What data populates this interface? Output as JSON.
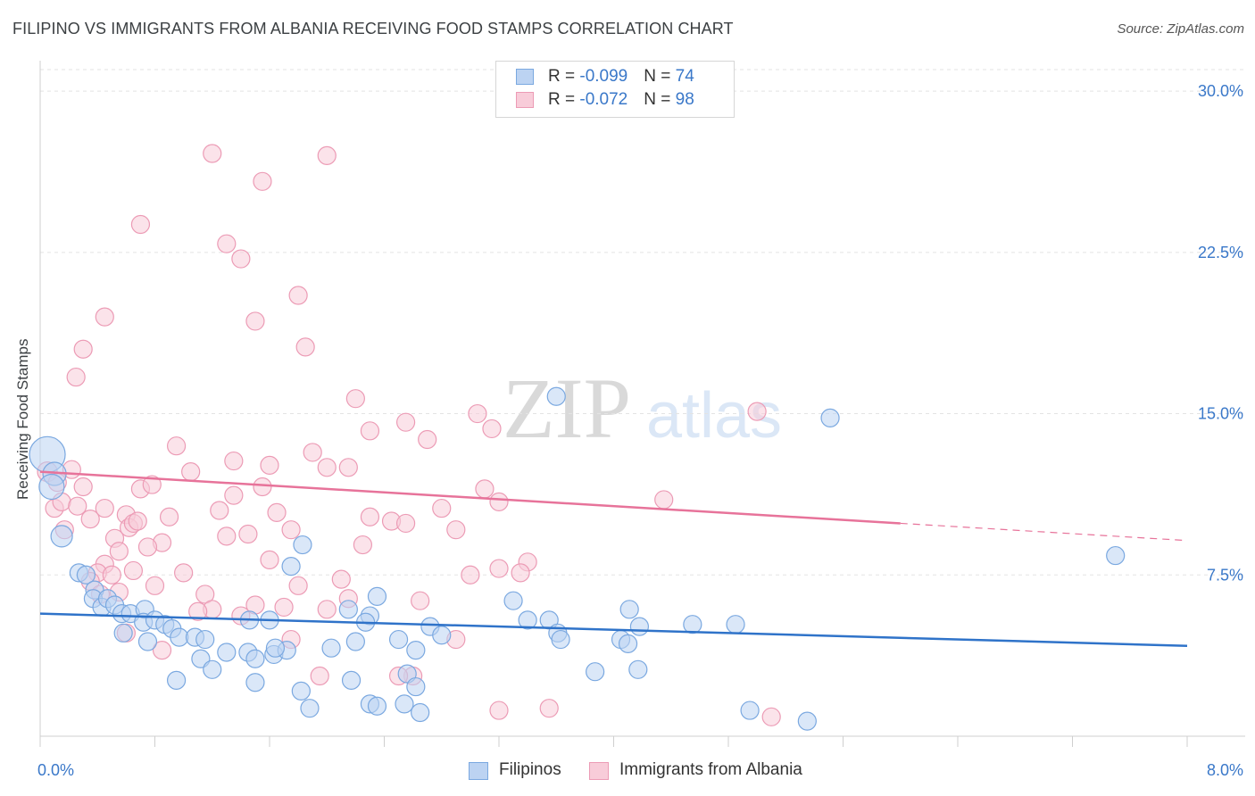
{
  "header": {
    "title": "FILIPINO VS IMMIGRANTS FROM ALBANIA RECEIVING FOOD STAMPS CORRELATION CHART",
    "source": "Source: ZipAtlas.com"
  },
  "watermark": {
    "zip": "ZIP",
    "atlas": "atlas"
  },
  "legend": {
    "rows": [
      {
        "r_label": "R = ",
        "r_value": "-0.099",
        "n_label": "N = ",
        "n_value": "74",
        "color": "#7aa8e0",
        "fill": "#bcd3f2"
      },
      {
        "r_label": "R = ",
        "r_value": "-0.072",
        "n_label": "N = ",
        "n_value": "98",
        "color": "#ec9bb5",
        "fill": "#f8ccd9"
      }
    ]
  },
  "bottom_legend": [
    "Filipinos",
    "Immigrants from Albania"
  ],
  "chart_data": {
    "type": "scatter",
    "title": "FILIPINO VS IMMIGRANTS FROM ALBANIA RECEIVING FOOD STAMPS CORRELATION CHART",
    "xlabel": "",
    "ylabel": "Receiving Food Stamps",
    "xlim": [
      0,
      8
    ],
    "ylim": [
      0,
      31
    ],
    "x_tick_labels": [
      "0.0%",
      "8.0%"
    ],
    "y_ticks": [
      7.5,
      15.0,
      22.5,
      30.0
    ],
    "y_tick_labels": [
      "7.5%",
      "15.0%",
      "22.5%",
      "30.0%"
    ],
    "grid": true,
    "series": [
      {
        "name": "Filipinos",
        "color": "#7aa8e0",
        "fill": "#bcd3f2",
        "line_color": "#2f73c9",
        "trend": {
          "x0": 0.0,
          "y0": 5.7,
          "x1": 8.0,
          "y1": 4.2
        },
        "points": [
          [
            0.05,
            13.1
          ],
          [
            0.1,
            12.2
          ],
          [
            0.08,
            11.6
          ],
          [
            0.15,
            9.3
          ],
          [
            0.27,
            7.6
          ],
          [
            0.32,
            7.5
          ],
          [
            0.38,
            6.8
          ],
          [
            0.37,
            6.4
          ],
          [
            0.43,
            6.0
          ],
          [
            0.47,
            6.4
          ],
          [
            0.52,
            6.1
          ],
          [
            0.57,
            5.7
          ],
          [
            0.63,
            5.7
          ],
          [
            0.73,
            5.9
          ],
          [
            0.72,
            5.3
          ],
          [
            0.8,
            5.4
          ],
          [
            0.87,
            5.2
          ],
          [
            0.92,
            5.0
          ],
          [
            0.97,
            4.6
          ],
          [
            0.75,
            4.4
          ],
          [
            0.58,
            4.8
          ],
          [
            1.08,
            4.6
          ],
          [
            1.15,
            4.5
          ],
          [
            0.95,
            2.6
          ],
          [
            1.12,
            3.6
          ],
          [
            1.2,
            3.1
          ],
          [
            1.3,
            3.9
          ],
          [
            1.45,
            3.9
          ],
          [
            1.5,
            3.6
          ],
          [
            1.63,
            3.8
          ],
          [
            1.72,
            4.0
          ],
          [
            1.75,
            7.9
          ],
          [
            1.82,
            2.1
          ],
          [
            1.5,
            2.5
          ],
          [
            1.88,
            1.3
          ],
          [
            2.3,
            1.5
          ],
          [
            2.35,
            1.4
          ],
          [
            2.54,
            1.5
          ],
          [
            2.56,
            2.9
          ],
          [
            2.62,
            2.3
          ],
          [
            2.65,
            1.1
          ],
          [
            2.5,
            4.5
          ],
          [
            2.62,
            4.0
          ],
          [
            2.2,
            4.4
          ],
          [
            2.03,
            4.1
          ],
          [
            2.35,
            6.5
          ],
          [
            2.3,
            5.6
          ],
          [
            2.27,
            5.3
          ],
          [
            2.15,
            5.9
          ],
          [
            1.83,
            8.9
          ],
          [
            1.6,
            5.4
          ],
          [
            1.46,
            5.4
          ],
          [
            1.64,
            4.1
          ],
          [
            2.17,
            2.6
          ],
          [
            2.72,
            5.1
          ],
          [
            2.8,
            4.7
          ],
          [
            3.3,
            6.3
          ],
          [
            3.4,
            5.4
          ],
          [
            3.55,
            5.4
          ],
          [
            3.61,
            4.8
          ],
          [
            3.63,
            4.5
          ],
          [
            3.6,
            15.8
          ],
          [
            3.87,
            3.0
          ],
          [
            4.11,
            5.9
          ],
          [
            4.17,
            3.1
          ],
          [
            4.05,
            4.5
          ],
          [
            4.1,
            4.3
          ],
          [
            4.18,
            5.1
          ],
          [
            4.55,
            5.2
          ],
          [
            4.85,
            5.2
          ],
          [
            5.51,
            14.8
          ],
          [
            4.95,
            1.2
          ],
          [
            5.35,
            0.7
          ],
          [
            7.5,
            8.4
          ]
        ],
        "point_sizes": [
          20,
          13,
          14,
          12,
          10,
          10,
          10,
          10,
          10,
          10,
          10,
          10,
          10,
          10,
          10,
          10,
          10,
          10,
          10,
          10,
          10,
          10,
          10,
          10,
          10,
          10,
          10,
          10,
          10,
          10,
          10,
          10,
          10,
          10,
          10,
          10,
          10,
          10,
          10,
          10,
          10,
          10,
          10,
          10,
          10,
          10,
          10,
          10,
          10,
          10,
          10,
          10,
          10,
          10,
          10,
          10,
          10,
          10,
          10,
          10,
          10,
          10,
          10,
          10,
          10,
          10,
          10,
          10,
          10,
          10,
          10,
          10,
          10,
          10
        ]
      },
      {
        "name": "Immigrants from Albania",
        "color": "#ec9bb5",
        "fill": "#f8ccd9",
        "line_color": "#e7739a",
        "trend": {
          "x0": 0.0,
          "y0": 12.3,
          "x1": 6.0,
          "y1": 9.9
        },
        "trend_dashed": {
          "x0": 6.0,
          "y0": 9.9,
          "x1": 8.0,
          "y1": 9.1
        },
        "points": [
          [
            0.05,
            12.3
          ],
          [
            0.12,
            11.8
          ],
          [
            0.1,
            10.6
          ],
          [
            0.15,
            10.9
          ],
          [
            0.17,
            9.6
          ],
          [
            0.22,
            12.4
          ],
          [
            0.26,
            10.7
          ],
          [
            0.3,
            11.6
          ],
          [
            0.35,
            10.1
          ],
          [
            0.45,
            10.6
          ],
          [
            0.52,
            9.2
          ],
          [
            0.6,
            10.3
          ],
          [
            0.62,
            9.7
          ],
          [
            0.65,
            9.9
          ],
          [
            0.68,
            10.0
          ],
          [
            0.7,
            11.5
          ],
          [
            0.78,
            11.7
          ],
          [
            0.25,
            16.7
          ],
          [
            0.3,
            18.0
          ],
          [
            0.45,
            19.5
          ],
          [
            0.7,
            23.8
          ],
          [
            1.2,
            27.1
          ],
          [
            1.55,
            25.8
          ],
          [
            1.4,
            22.2
          ],
          [
            1.3,
            22.9
          ],
          [
            1.8,
            20.5
          ],
          [
            1.5,
            19.3
          ],
          [
            2.0,
            27.0
          ],
          [
            1.85,
            18.1
          ],
          [
            2.2,
            15.7
          ],
          [
            2.55,
            14.6
          ],
          [
            2.7,
            13.8
          ],
          [
            2.3,
            14.2
          ],
          [
            1.9,
            13.2
          ],
          [
            2.15,
            12.5
          ],
          [
            1.35,
            12.8
          ],
          [
            1.05,
            12.3
          ],
          [
            0.95,
            13.5
          ],
          [
            1.6,
            12.6
          ],
          [
            1.55,
            11.6
          ],
          [
            1.25,
            10.5
          ],
          [
            1.35,
            11.2
          ],
          [
            1.65,
            10.4
          ],
          [
            1.75,
            9.6
          ],
          [
            1.3,
            9.3
          ],
          [
            0.9,
            10.2
          ],
          [
            0.85,
            9.0
          ],
          [
            0.75,
            8.8
          ],
          [
            0.55,
            8.6
          ],
          [
            0.45,
            8.0
          ],
          [
            0.4,
            7.6
          ],
          [
            0.35,
            7.2
          ],
          [
            0.5,
            7.5
          ],
          [
            0.55,
            6.7
          ],
          [
            0.8,
            7.0
          ],
          [
            1.0,
            7.6
          ],
          [
            1.15,
            6.6
          ],
          [
            1.2,
            5.9
          ],
          [
            1.4,
            5.6
          ],
          [
            1.7,
            6.0
          ],
          [
            1.8,
            7.0
          ],
          [
            2.1,
            7.3
          ],
          [
            2.0,
            5.9
          ],
          [
            2.15,
            6.4
          ],
          [
            2.3,
            10.2
          ],
          [
            2.45,
            10.0
          ],
          [
            2.8,
            10.6
          ],
          [
            2.9,
            9.6
          ],
          [
            3.2,
            7.8
          ],
          [
            3.4,
            8.1
          ],
          [
            3.1,
            11.5
          ],
          [
            3.2,
            10.9
          ],
          [
            3.35,
            7.6
          ],
          [
            3.0,
            7.5
          ],
          [
            2.9,
            4.5
          ],
          [
            2.6,
            2.8
          ],
          [
            3.2,
            1.2
          ],
          [
            3.55,
            1.3
          ],
          [
            5.0,
            15.1
          ],
          [
            4.35,
            11.0
          ],
          [
            5.1,
            0.9
          ],
          [
            2.65,
            6.3
          ],
          [
            1.95,
            2.8
          ],
          [
            2.5,
            2.8
          ],
          [
            1.75,
            4.5
          ],
          [
            0.85,
            4.0
          ],
          [
            1.1,
            5.8
          ],
          [
            0.6,
            4.8
          ],
          [
            2.55,
            9.9
          ],
          [
            2.25,
            8.9
          ],
          [
            1.45,
            9.4
          ],
          [
            1.5,
            6.1
          ],
          [
            1.6,
            8.2
          ],
          [
            0.42,
            6.6
          ],
          [
            0.65,
            7.7
          ],
          [
            3.05,
            15.0
          ],
          [
            3.15,
            14.3
          ],
          [
            2.0,
            12.5
          ]
        ],
        "point_sizes": [
          11,
          10,
          10,
          10,
          10,
          10,
          10,
          10,
          10,
          10,
          10,
          10,
          10,
          10,
          10,
          10,
          10,
          10,
          10,
          10,
          10,
          10,
          10,
          10,
          10,
          10,
          10,
          10,
          10,
          10,
          10,
          10,
          10,
          10,
          10,
          10,
          10,
          10,
          10,
          10,
          10,
          10,
          10,
          10,
          10,
          10,
          10,
          10,
          10,
          10,
          10,
          10,
          10,
          10,
          10,
          10,
          10,
          10,
          10,
          10,
          10,
          10,
          10,
          10,
          10,
          10,
          10,
          10,
          10,
          10,
          10,
          10,
          10,
          10,
          10,
          10,
          10,
          10,
          10,
          10,
          10,
          10,
          10,
          10,
          10,
          10,
          10,
          10,
          10,
          10,
          10,
          10,
          10,
          10,
          10,
          10,
          10,
          10
        ]
      }
    ]
  }
}
